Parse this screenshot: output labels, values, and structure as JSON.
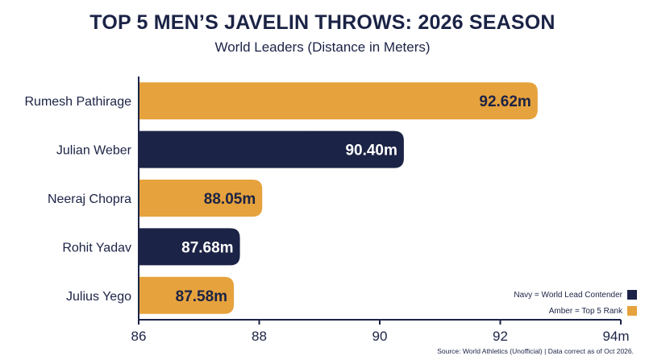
{
  "chart_data": {
    "type": "bar",
    "orientation": "horizontal",
    "title": "TOP 5 MEN’S JAVELIN THROWS: 2026 SEASON",
    "subtitle": "World Leaders (Distance in Meters)",
    "categories": [
      "Rumesh Pathirage",
      "Julian Weber",
      "Neeraj Chopra",
      "Rohit Yadav",
      "Julius Yego"
    ],
    "values": [
      92.62,
      90.4,
      88.05,
      87.68,
      87.58
    ],
    "value_labels": [
      "92.62m",
      "90.40m",
      "88.05m",
      "87.68m",
      "87.58m"
    ],
    "bar_colors": [
      "#e6a23c",
      "#1b2346",
      "#e6a23c",
      "#1b2346",
      "#e6a23c"
    ],
    "xlim": [
      86,
      94
    ],
    "x_ticks": [
      "86",
      "88",
      "90",
      "92",
      "94m"
    ],
    "x_tick_values": [
      86,
      88,
      90,
      92,
      94
    ],
    "xlabel": "",
    "ylabel": "",
    "grid": false,
    "legend_position": "bottom-right",
    "legend": [
      {
        "label": "Navy = World Lead Contender",
        "color": "#1b2346"
      },
      {
        "label": "Amber = Top 5 Rank",
        "color": "#e6a23c"
      }
    ],
    "source": "Source: World Athletics (Unofficial) | Data correct as of Oct 2026."
  }
}
